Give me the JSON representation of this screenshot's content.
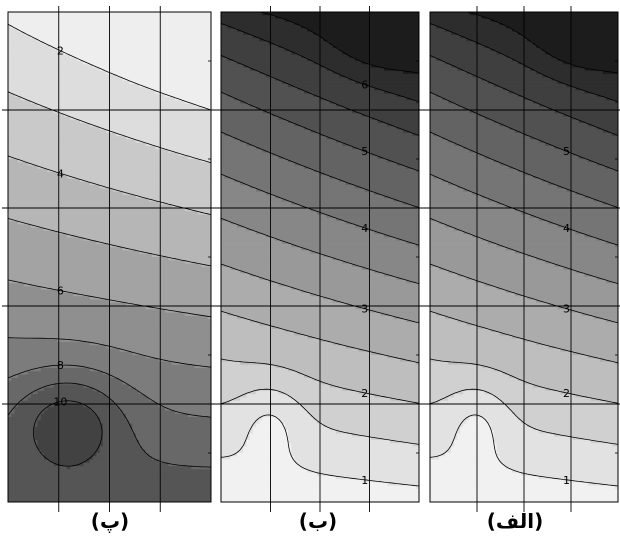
{
  "chart_data": [
    {
      "type": "heatmap",
      "subtype": "filled-contour",
      "caption": "(الف)",
      "panel_order": "right",
      "contour_labels": [
        "5",
        "4",
        "3",
        "2",
        "1"
      ],
      "contour_levels": [
        1,
        1.5,
        2,
        2.5,
        3,
        3.5,
        4,
        4.5,
        5,
        5.5,
        6,
        6.5
      ],
      "value_range": [
        0.7,
        6.9
      ],
      "color_scale": {
        "low": "#f6f6f6",
        "high": "#151515"
      },
      "grid": true,
      "grid_columns": 4,
      "grid_rows": 5,
      "features": {
        "maximum_location": "top-right",
        "minimum_location": "lower-left",
        "minimum_value": 0.7
      }
    },
    {
      "type": "heatmap",
      "subtype": "filled-contour",
      "caption": "(ب)",
      "panel_order": "middle",
      "contour_labels": [
        "6",
        "5",
        "4",
        "3",
        "2",
        "1"
      ],
      "contour_levels": [
        1,
        1.5,
        2,
        2.5,
        3,
        3.5,
        4,
        4.5,
        5,
        5.5,
        6,
        6.5
      ],
      "value_range": [
        0.7,
        6.9
      ],
      "color_scale": {
        "low": "#f6f6f6",
        "high": "#151515"
      },
      "grid": true,
      "grid_columns": 4,
      "grid_rows": 5,
      "features": {
        "maximum_location": "top-right",
        "minimum_location": "lower-left",
        "minimum_value": 0.7
      }
    },
    {
      "type": "heatmap",
      "subtype": "filled-contour",
      "caption": "(پ)",
      "panel_order": "left",
      "contour_labels": [
        "2",
        "4",
        "6",
        "8",
        "10"
      ],
      "contour_levels": [
        2,
        3,
        4,
        5,
        6,
        7,
        8,
        9,
        10,
        11,
        12
      ],
      "value_range": [
        1.2,
        12.8
      ],
      "color_scale": {
        "low": "#f6f6f6",
        "high": "#151515"
      },
      "grid": true,
      "grid_columns": 4,
      "grid_rows": 5,
      "features": {
        "maximum_location": "lower-left",
        "maximum_value": 12.8,
        "minimum_location": "top-right",
        "minimum_value": 1.2
      }
    }
  ]
}
